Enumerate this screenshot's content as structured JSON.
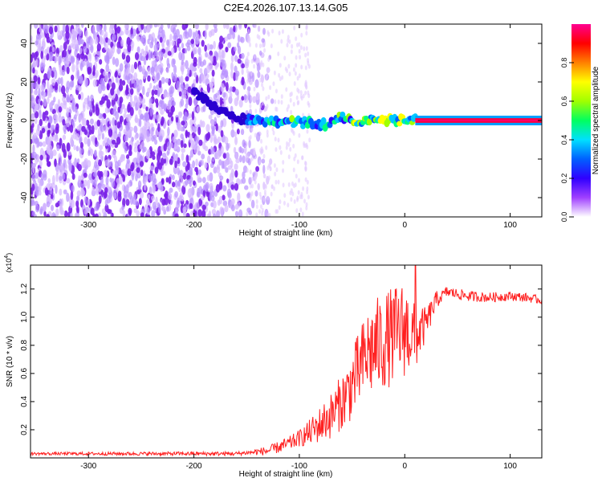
{
  "title": "C2E4.2026.107.13.14.G05",
  "chart_data": [
    {
      "type": "heatmap",
      "name": "spectrogram",
      "xlabel": "Height of straight line (km)",
      "ylabel": "Frequency (Hz)",
      "xlim": [
        -355,
        130
      ],
      "ylim": [
        -50,
        50
      ],
      "xticks": [
        -300,
        -200,
        -100,
        0,
        100
      ],
      "yticks": [
        -40,
        -20,
        0,
        20,
        40
      ],
      "colorbar": {
        "label": "Normalized spectral amplitude",
        "range": [
          0,
          1
        ],
        "ticks": [
          0.0,
          0.2,
          0.4,
          0.6,
          0.8
        ],
        "colors": [
          "#ffffff",
          "#a040ff",
          "#3000ff",
          "#0060ff",
          "#00e0ff",
          "#00ff60",
          "#a0ff00",
          "#ffff00",
          "#ff8000",
          "#ff0000",
          "#ff0090"
        ]
      },
      "signal_track": [
        {
          "x": -200,
          "f": 15
        },
        {
          "x": -185,
          "f": 9
        },
        {
          "x": -170,
          "f": 4
        },
        {
          "x": -155,
          "f": 1
        },
        {
          "x": -130,
          "f": 0
        },
        {
          "x": -100,
          "f": -1
        },
        {
          "x": -75,
          "f": -2
        },
        {
          "x": -60,
          "f": 2
        },
        {
          "x": -45,
          "f": -1
        },
        {
          "x": -30,
          "f": 1
        },
        {
          "x": -10,
          "f": 0
        },
        {
          "x": 10,
          "f": 0
        },
        {
          "x": 130,
          "f": 0
        }
      ],
      "strong_band_hz": [
        -2,
        2
      ],
      "strong_band_x": [
        10,
        130
      ]
    },
    {
      "type": "line",
      "name": "snr",
      "xlabel": "Height of straight line (km)",
      "ylabel": "SNR (10 * v/v)",
      "y_multiplier": "(x10",
      "y_multiplier_exp": "4",
      "y_multiplier_close": ")",
      "xlim": [
        -355,
        130
      ],
      "ylim": [
        0,
        1.37
      ],
      "xticks": [
        -300,
        -200,
        -100,
        0,
        100
      ],
      "yticks": [
        0.2,
        0.4,
        0.6,
        0.8,
        1.0,
        1.2
      ],
      "color": "#ff2020",
      "series": [
        {
          "x": -355,
          "y": 0.03
        },
        {
          "x": -250,
          "y": 0.03
        },
        {
          "x": -160,
          "y": 0.03
        },
        {
          "x": -130,
          "y": 0.05
        },
        {
          "x": -110,
          "y": 0.1
        },
        {
          "x": -90,
          "y": 0.18
        },
        {
          "x": -70,
          "y": 0.3
        },
        {
          "x": -55,
          "y": 0.45
        },
        {
          "x": -45,
          "y": 0.6
        },
        {
          "x": -35,
          "y": 0.75
        },
        {
          "x": -25,
          "y": 0.8
        },
        {
          "x": -15,
          "y": 0.85
        },
        {
          "x": 0,
          "y": 0.92
        },
        {
          "x": 10,
          "y": 0.85
        },
        {
          "x": 20,
          "y": 0.95
        },
        {
          "x": 30,
          "y": 1.12
        },
        {
          "x": 40,
          "y": 1.18
        },
        {
          "x": 60,
          "y": 1.15
        },
        {
          "x": 80,
          "y": 1.14
        },
        {
          "x": 100,
          "y": 1.15
        },
        {
          "x": 115,
          "y": 1.14
        },
        {
          "x": 130,
          "y": 1.12
        }
      ],
      "noise_amplitude": [
        {
          "x": -355,
          "a": 0.01
        },
        {
          "x": -150,
          "a": 0.015
        },
        {
          "x": -100,
          "a": 0.06
        },
        {
          "x": -60,
          "a": 0.2
        },
        {
          "x": -30,
          "a": 0.35
        },
        {
          "x": 0,
          "a": 0.35
        },
        {
          "x": 20,
          "a": 0.12
        },
        {
          "x": 35,
          "a": 0.04
        },
        {
          "x": 130,
          "a": 0.03
        }
      ],
      "peak": {
        "x": 10,
        "y": 1.37
      }
    }
  ]
}
